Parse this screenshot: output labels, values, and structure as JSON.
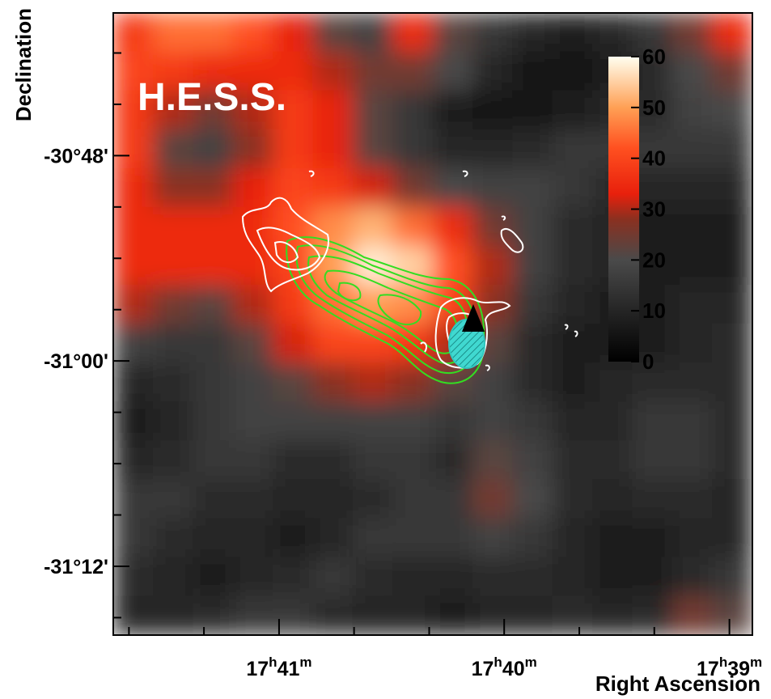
{
  "chart_data": {
    "type": "heatmap",
    "title": "H.E.S.S.",
    "x_label": "Right Ascension",
    "y_label": "Declination",
    "xlim": [
      17.6956,
      17.6483
    ],
    "ylim": [
      -31.267,
      -30.661
    ],
    "xticks": [
      {
        "value": 17.68333,
        "label": "17h41m"
      },
      {
        "value": 17.66667,
        "label": "17h40m"
      },
      {
        "value": 17.65,
        "label": "17h39m"
      }
    ],
    "xminorticks": [
      17.69444,
      17.68889,
      17.67778,
      17.67222,
      17.66111,
      17.65556
    ],
    "yticks": [
      {
        "value": -30.8,
        "label": "-30°48'"
      },
      {
        "value": -31.0,
        "label": "-31°00'"
      },
      {
        "value": -31.2,
        "label": "-31°12'"
      }
    ],
    "yminorticks": [
      -30.7,
      -30.75,
      -30.85,
      -30.9,
      -30.95,
      -31.05,
      -31.1,
      -31.15,
      -31.25
    ],
    "z": [
      [
        38,
        45,
        45,
        42,
        33,
        22,
        18,
        35,
        22,
        15,
        10,
        8,
        10,
        15,
        25,
        35
      ],
      [
        40,
        38,
        35,
        35,
        35,
        30,
        25,
        25,
        20,
        10,
        5,
        5,
        8,
        12,
        20,
        25
      ],
      [
        38,
        30,
        25,
        30,
        38,
        33,
        22,
        15,
        8,
        5,
        5,
        8,
        10,
        12,
        18,
        20
      ],
      [
        38,
        22,
        18,
        28,
        38,
        33,
        22,
        15,
        10,
        10,
        12,
        15,
        15,
        15,
        15,
        15
      ],
      [
        35,
        28,
        28,
        33,
        40,
        38,
        32,
        25,
        20,
        18,
        18,
        15,
        12,
        10,
        10,
        10
      ],
      [
        35,
        35,
        35,
        35,
        42,
        48,
        52,
        45,
        35,
        25,
        18,
        12,
        10,
        8,
        8,
        8
      ],
      [
        35,
        35,
        35,
        35,
        40,
        50,
        58,
        55,
        42,
        30,
        18,
        12,
        10,
        8,
        8,
        8
      ],
      [
        30,
        25,
        22,
        30,
        38,
        45,
        50,
        48,
        40,
        28,
        15,
        10,
        8,
        8,
        10,
        10
      ],
      [
        18,
        15,
        15,
        22,
        32,
        40,
        40,
        38,
        30,
        22,
        12,
        8,
        8,
        8,
        10,
        12
      ],
      [
        10,
        12,
        15,
        18,
        22,
        28,
        30,
        28,
        22,
        18,
        12,
        8,
        10,
        12,
        12,
        12
      ],
      [
        8,
        10,
        15,
        18,
        18,
        18,
        18,
        18,
        15,
        18,
        15,
        10,
        10,
        15,
        15,
        12
      ],
      [
        10,
        12,
        15,
        15,
        12,
        12,
        15,
        15,
        12,
        22,
        18,
        12,
        12,
        15,
        15,
        12
      ],
      [
        15,
        15,
        12,
        12,
        10,
        10,
        12,
        15,
        15,
        25,
        20,
        12,
        10,
        12,
        12,
        10
      ],
      [
        15,
        12,
        10,
        10,
        8,
        10,
        15,
        15,
        15,
        18,
        15,
        10,
        8,
        8,
        10,
        10
      ],
      [
        12,
        10,
        8,
        10,
        12,
        15,
        12,
        10,
        10,
        12,
        12,
        10,
        8,
        8,
        12,
        15
      ],
      [
        10,
        10,
        12,
        15,
        15,
        12,
        10,
        10,
        8,
        10,
        10,
        12,
        10,
        12,
        25,
        22
      ]
    ],
    "colorbar_lim": [
      0,
      60
    ],
    "colorbar_ticks": [
      0,
      10,
      20,
      30,
      40,
      50,
      60
    ],
    "colorscale": [
      [
        0,
        "#000000"
      ],
      [
        20,
        "#4a4a4a"
      ],
      [
        28,
        "#8a3020"
      ],
      [
        33,
        "#e8200c"
      ],
      [
        42,
        "#ff5020"
      ],
      [
        50,
        "#ffa055"
      ],
      [
        60,
        "#fffff0"
      ]
    ]
  }
}
